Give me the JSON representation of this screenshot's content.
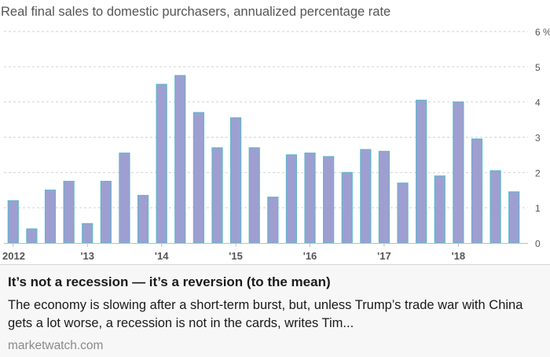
{
  "chart_data": {
    "type": "bar",
    "title": "Real final sales to domestic purchasers, annualized percentage rate",
    "xlabel": "",
    "ylabel": "",
    "y_unit": "%",
    "ylim": [
      0,
      6
    ],
    "yticks": [
      0,
      1,
      2,
      3,
      4,
      5,
      6
    ],
    "ytick_labels": [
      "0",
      "1",
      "2",
      "3",
      "4",
      "5",
      "6 %"
    ],
    "grid": true,
    "legend": "none",
    "x_tick_labels": [
      {
        "label": "2012",
        "category": "2012Q1"
      },
      {
        "label": "'13",
        "category": "2013Q1"
      },
      {
        "label": "'14",
        "category": "2014Q1"
      },
      {
        "label": "'15",
        "category": "2015Q1"
      },
      {
        "label": "'16",
        "category": "2016Q1"
      },
      {
        "label": "'17",
        "category": "2017Q1"
      },
      {
        "label": "'18",
        "category": "2018Q1"
      }
    ],
    "categories": [
      "2012Q1",
      "2012Q2",
      "2012Q3",
      "2012Q4",
      "2013Q1",
      "2013Q2",
      "2013Q3",
      "2013Q4",
      "2014Q1",
      "2014Q2",
      "2014Q3",
      "2014Q4",
      "2015Q1",
      "2015Q2",
      "2015Q3",
      "2015Q4",
      "2016Q1",
      "2016Q2",
      "2016Q3",
      "2016Q4",
      "2017Q1",
      "2017Q2",
      "2017Q3",
      "2017Q4",
      "2018Q1",
      "2018Q2",
      "2018Q3",
      "2018Q4"
    ],
    "values": [
      1.2,
      0.4,
      1.5,
      1.75,
      0.55,
      1.75,
      2.55,
      1.35,
      4.5,
      4.75,
      3.7,
      2.7,
      3.55,
      2.7,
      1.3,
      2.5,
      2.55,
      2.45,
      2.0,
      2.65,
      2.6,
      1.7,
      4.05,
      1.9,
      4.0,
      2.95,
      2.05,
      1.45
    ],
    "colors": {
      "bar_fill": "#9e9fd0",
      "bar_edge": "#5fb7cd",
      "gridline": "#d2d2d2",
      "axis_text": "#555555"
    }
  },
  "caption": {
    "headline": "It’s not a recession — it’s a reversion (to the mean)",
    "summary": "The economy is slowing after a short-term burst, but, unless Trump’s trade war with China gets a lot worse, a recession is not in the cards, writes Tim...",
    "source": "marketwatch.com"
  }
}
